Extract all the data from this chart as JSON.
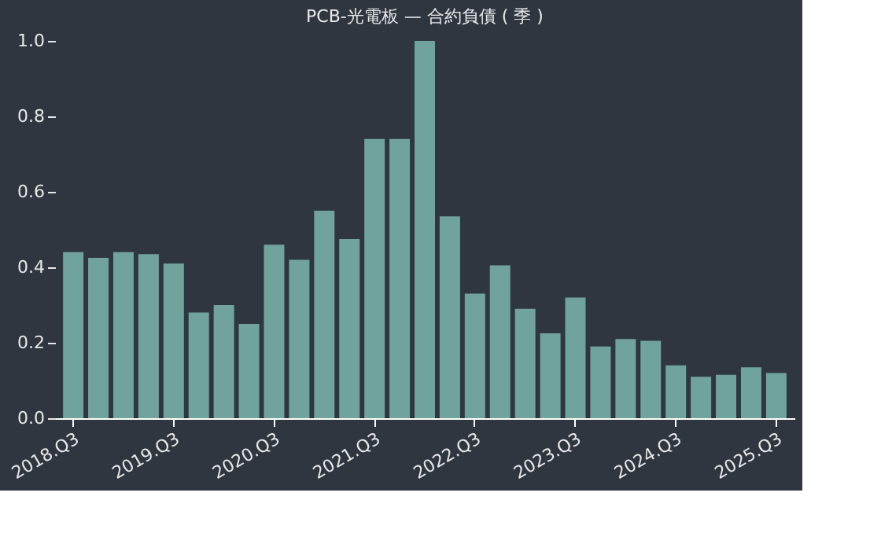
{
  "chart_data": {
    "type": "bar",
    "title": "PCB-光電板 — 合約負債 ( 季 )",
    "categories": [
      "2018.Q3",
      null,
      null,
      null,
      "2019.Q3",
      null,
      null,
      null,
      "2020.Q3",
      null,
      null,
      null,
      "2021.Q3",
      null,
      null,
      null,
      "2022.Q3",
      null,
      null,
      null,
      "2023.Q3",
      null,
      null,
      null,
      "2024.Q3",
      null,
      null,
      null,
      "2025.Q3"
    ],
    "values": [
      0.44,
      0.425,
      0.44,
      0.435,
      0.41,
      0.28,
      0.3,
      0.25,
      0.46,
      0.42,
      0.55,
      0.475,
      0.74,
      0.74,
      1.0,
      0.535,
      0.33,
      0.405,
      0.29,
      0.225,
      0.32,
      0.19,
      0.21,
      0.205,
      0.14,
      0.11,
      0.115,
      0.135,
      0.12
    ],
    "color": "#6fa39c",
    "ylim": [
      0,
      1.0
    ],
    "yticks": [
      {
        "value": 0,
        "label": "0.0"
      },
      0.2,
      0.4,
      0.6,
      0.8,
      {
        "value": 1,
        "label": "1.0"
      }
    ],
    "grid": false
  }
}
